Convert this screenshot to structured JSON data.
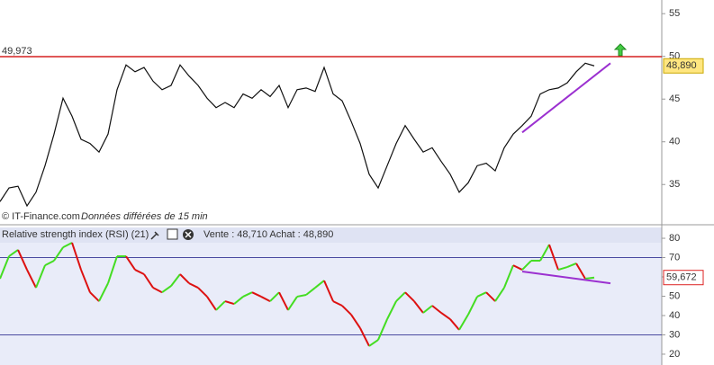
{
  "chart_data": [
    {
      "type": "line",
      "color": "#111111",
      "xlim": [
        0,
        73
      ],
      "ylim": [
        30.5,
        56.6
      ],
      "yticks": [
        35,
        40,
        45,
        50,
        55
      ],
      "x": [
        0,
        1,
        2,
        3,
        4,
        5,
        6,
        7,
        8,
        9,
        10,
        11,
        12,
        13,
        14,
        15,
        16,
        17,
        18,
        19,
        20,
        21,
        22,
        23,
        24,
        25,
        26,
        27,
        28,
        29,
        30,
        31,
        32,
        33,
        34,
        35,
        36,
        37,
        38,
        39,
        40,
        41,
        42,
        43,
        44,
        45,
        46,
        47,
        48,
        49,
        50,
        51,
        52,
        53,
        54,
        55,
        56,
        57,
        58,
        59,
        60,
        61,
        62,
        63,
        64,
        65,
        66
      ],
      "values": [
        33.0,
        34.6,
        34.8,
        32.5,
        34.1,
        37.2,
        40.9,
        45.1,
        43.0,
        40.3,
        39.8,
        38.8,
        40.9,
        46.1,
        49.0,
        48.2,
        48.7,
        47.1,
        46.1,
        46.6,
        49.0,
        47.7,
        46.6,
        45.1,
        44.0,
        44.6,
        44.0,
        45.6,
        45.1,
        46.1,
        45.3,
        46.6,
        44.0,
        46.1,
        46.3,
        45.9,
        48.7,
        45.6,
        44.8,
        42.4,
        39.8,
        36.2,
        34.6,
        37.2,
        39.8,
        41.9,
        40.3,
        38.8,
        39.3,
        37.7,
        36.2,
        34.1,
        35.2,
        37.2,
        37.5,
        36.6,
        39.3,
        40.9,
        41.9,
        43.0,
        45.6,
        46.1,
        46.3,
        46.9,
        48.2,
        49.2,
        48.89
      ],
      "hline": {
        "value": 49.973,
        "label": "49,973",
        "color": "#d62020"
      },
      "last": {
        "value": 48.89,
        "label": "48,890"
      },
      "trendline": {
        "x": [
          58,
          67.8
        ],
        "values": [
          41.1,
          49.2
        ],
        "color": "#9b30d0"
      }
    },
    {
      "type": "rsi",
      "title": "Relative strength index (RSI) (21)",
      "quote": "Vente : 48,710 Achat : 48,890",
      "up_color": "#44dd22",
      "down_color": "#dd1111",
      "xlim": [
        0,
        73
      ],
      "ylim": [
        14.4,
        85.6
      ],
      "yticks": [
        20,
        30,
        40,
        50,
        60,
        70,
        80
      ],
      "levels": [
        70,
        30
      ],
      "x": [
        0,
        1,
        2,
        3,
        4,
        5,
        6,
        7,
        8,
        9,
        10,
        11,
        12,
        13,
        14,
        15,
        16,
        17,
        18,
        19,
        20,
        21,
        22,
        23,
        24,
        25,
        26,
        27,
        28,
        29,
        30,
        31,
        32,
        33,
        34,
        35,
        36,
        37,
        38,
        39,
        40,
        41,
        42,
        43,
        44,
        45,
        46,
        47,
        48,
        49,
        50,
        51,
        52,
        53,
        54,
        55,
        56,
        57,
        58,
        59,
        60,
        61,
        62,
        63,
        64,
        65,
        66
      ],
      "values": [
        59.1,
        70.7,
        74.0,
        63.7,
        54.4,
        66.0,
        68.4,
        75.3,
        77.7,
        63.7,
        52.0,
        47.4,
        56.7,
        70.7,
        70.7,
        63.7,
        61.4,
        54.4,
        52.0,
        55.3,
        61.4,
        56.7,
        54.4,
        49.8,
        42.8,
        47.4,
        46.0,
        49.8,
        52.0,
        49.8,
        47.4,
        52.0,
        42.8,
        49.8,
        50.7,
        54.4,
        58.1,
        47.4,
        45.1,
        40.5,
        33.5,
        24.2,
        27.4,
        38.1,
        47.4,
        52.0,
        47.4,
        41.4,
        45.1,
        41.4,
        38.1,
        32.6,
        40.5,
        49.8,
        52.0,
        47.4,
        54.4,
        66.0,
        63.7,
        68.4,
        68.4,
        76.7,
        63.7,
        65.1,
        67.0,
        59.1,
        59.672
      ],
      "last": {
        "value": 59.672,
        "label": "59,672"
      },
      "trendline": {
        "x": [
          58,
          67.8
        ],
        "values": [
          62.8,
          56.7
        ],
        "color": "#9b30d0"
      }
    }
  ],
  "footer": {
    "source": "© IT-Finance.com",
    "note": "Données différées de 15 min"
  }
}
